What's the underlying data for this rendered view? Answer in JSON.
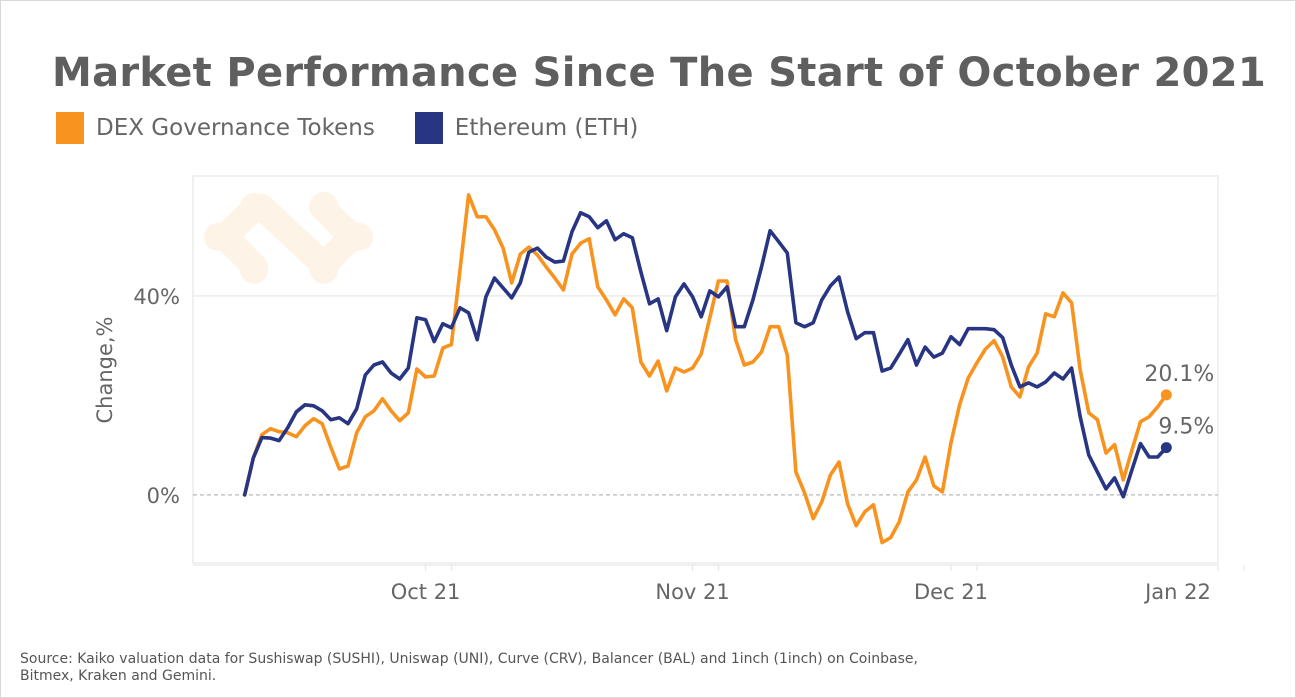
{
  "title": "Market Performance Since The Start of October 2021",
  "source": "Source: Kaiko valuation data for Sushiswap (SUSHI), Uniswap (UNI), Curve (CRV), Balancer (BAL) and 1inch (1inch) on Coinbase, Bitmex, Kraken and Gemini.",
  "watermark_icon": "kaiko-logo-icon",
  "chart_data": {
    "type": "line",
    "title": "Market Performance Since The Start of October 2021",
    "xlabel": "",
    "ylabel": "Change,%",
    "xlim": [
      "2021-09-04",
      "2022-01-01"
    ],
    "ylim": [
      -13.7,
      64.1
    ],
    "x_ticks": [
      {
        "date": "2021-10-01",
        "label": "Oct 21"
      },
      {
        "date": "2021-11-01",
        "label": "Nov 21"
      },
      {
        "date": "2021-12-01",
        "label": "Dec 21"
      },
      {
        "date": "2022-01-01",
        "label": "Jan 22"
      }
    ],
    "y_ticks": [
      {
        "value": 0,
        "label": "0%"
      },
      {
        "value": 40,
        "label": "40%"
      }
    ],
    "grid": "horizontal at 40%, dashed zero line",
    "legend_position": "top-left",
    "x": [
      "2021-09-10",
      "2021-09-11",
      "2021-09-12",
      "2021-09-13",
      "2021-09-14",
      "2021-09-15",
      "2021-09-16",
      "2021-09-17",
      "2021-09-18",
      "2021-09-19",
      "2021-09-20",
      "2021-09-21",
      "2021-09-22",
      "2021-09-23",
      "2021-09-24",
      "2021-09-25",
      "2021-09-26",
      "2021-09-27",
      "2021-09-28",
      "2021-09-29",
      "2021-09-30",
      "2021-10-01",
      "2021-10-02",
      "2021-10-03",
      "2021-10-04",
      "2021-10-05",
      "2021-10-06",
      "2021-10-07",
      "2021-10-08",
      "2021-10-09",
      "2021-10-10",
      "2021-10-11",
      "2021-10-12",
      "2021-10-13",
      "2021-10-14",
      "2021-10-15",
      "2021-10-16",
      "2021-10-17",
      "2021-10-18",
      "2021-10-19",
      "2021-10-20",
      "2021-10-21",
      "2021-10-22",
      "2021-10-23",
      "2021-10-24",
      "2021-10-25",
      "2021-10-26",
      "2021-10-27",
      "2021-10-28",
      "2021-10-29",
      "2021-10-30",
      "2021-10-31",
      "2021-11-01",
      "2021-11-02",
      "2021-11-03",
      "2021-11-04",
      "2021-11-05",
      "2021-11-06",
      "2021-11-07",
      "2021-11-08",
      "2021-11-09",
      "2021-11-10",
      "2021-11-11",
      "2021-11-12",
      "2021-11-13",
      "2021-11-14",
      "2021-11-15",
      "2021-11-16",
      "2021-11-17",
      "2021-11-18",
      "2021-11-19",
      "2021-11-20",
      "2021-11-21",
      "2021-11-22",
      "2021-11-23",
      "2021-11-24",
      "2021-11-25",
      "2021-11-26",
      "2021-11-27",
      "2021-11-28",
      "2021-11-29",
      "2021-11-30",
      "2021-12-01",
      "2021-12-02",
      "2021-12-03",
      "2021-12-04",
      "2021-12-05",
      "2021-12-06",
      "2021-12-07",
      "2021-12-08",
      "2021-12-09",
      "2021-12-10",
      "2021-12-11",
      "2021-12-12",
      "2021-12-13",
      "2021-12-14",
      "2021-12-15",
      "2021-12-16",
      "2021-12-17",
      "2021-12-18",
      "2021-12-19",
      "2021-12-20",
      "2021-12-21",
      "2021-12-22",
      "2021-12-23",
      "2021-12-24",
      "2021-12-25",
      "2021-12-26"
    ],
    "series": [
      {
        "name": "DEX Governance Tokens",
        "color": "#F7931E",
        "end_label": "20.1%",
        "values": [
          0,
          7.4,
          12.1,
          13.3,
          12.7,
          12.5,
          11.7,
          13.9,
          15.3,
          14.3,
          9.6,
          5.2,
          5.8,
          12.5,
          15.7,
          16.9,
          19.3,
          16.9,
          14.9,
          16.5,
          25.3,
          23.7,
          23.9,
          29.5,
          30.2,
          45.2,
          60.3,
          55.9,
          55.9,
          53.3,
          49.6,
          42.6,
          48.4,
          49.8,
          48.2,
          45.8,
          43.6,
          41.2,
          48.4,
          50.6,
          51.5,
          41.8,
          39.2,
          36.2,
          39.4,
          37.6,
          26.7,
          23.9,
          26.9,
          20.9,
          25.5,
          24.7,
          25.5,
          28.3,
          35.6,
          43.0,
          43.0,
          31.2,
          26.1,
          26.7,
          28.7,
          33.8,
          33.8,
          28.1,
          4.6,
          0.4,
          -4.8,
          -1.4,
          4.0,
          6.6,
          -1.8,
          -6.2,
          -3.4,
          -2.0,
          -9.6,
          -8.6,
          -5.4,
          0.6,
          3.0,
          7.6,
          1.8,
          0.6,
          10.5,
          18.1,
          23.5,
          26.5,
          29.3,
          31.0,
          27.7,
          21.7,
          19.7,
          25.7,
          28.5,
          36.4,
          35.8,
          40.6,
          38.6,
          25.1,
          16.5,
          15.1,
          8.4,
          10.1,
          3.0,
          9.0,
          14.7,
          15.7,
          17.7,
          20.1
        ]
      },
      {
        "name": "Ethereum (ETH)",
        "color": "#283583",
        "end_label": "9.5%",
        "values": [
          0,
          7.4,
          11.5,
          11.4,
          10.9,
          13.5,
          16.7,
          18.1,
          17.9,
          16.9,
          15.1,
          15.5,
          14.3,
          17.3,
          24.1,
          26.1,
          26.7,
          24.5,
          23.3,
          25.5,
          35.6,
          35.2,
          30.8,
          34.4,
          33.6,
          37.6,
          36.6,
          31.2,
          39.8,
          43.6,
          41.6,
          39.6,
          42.6,
          48.8,
          49.6,
          47.8,
          46.8,
          47.0,
          52.9,
          56.7,
          55.9,
          53.7,
          55.1,
          51.3,
          52.5,
          51.7,
          44.8,
          38.4,
          39.4,
          33.0,
          39.8,
          42.4,
          39.8,
          35.8,
          41.0,
          39.8,
          41.8,
          33.8,
          33.8,
          39.2,
          45.8,
          53.1,
          50.9,
          48.6,
          34.6,
          33.8,
          34.6,
          39.2,
          42.0,
          43.8,
          36.8,
          31.4,
          32.6,
          32.6,
          24.9,
          25.5,
          28.3,
          31.2,
          26.1,
          29.7,
          27.7,
          28.5,
          31.8,
          30.2,
          33.4,
          33.4,
          33.4,
          33.2,
          31.6,
          26.1,
          21.7,
          22.5,
          21.7,
          22.7,
          24.5,
          23.3,
          25.5,
          15.7,
          8.0,
          4.6,
          1.2,
          3.4,
          -0.4,
          5.0,
          10.3,
          7.6,
          7.6,
          9.5
        ]
      }
    ]
  }
}
